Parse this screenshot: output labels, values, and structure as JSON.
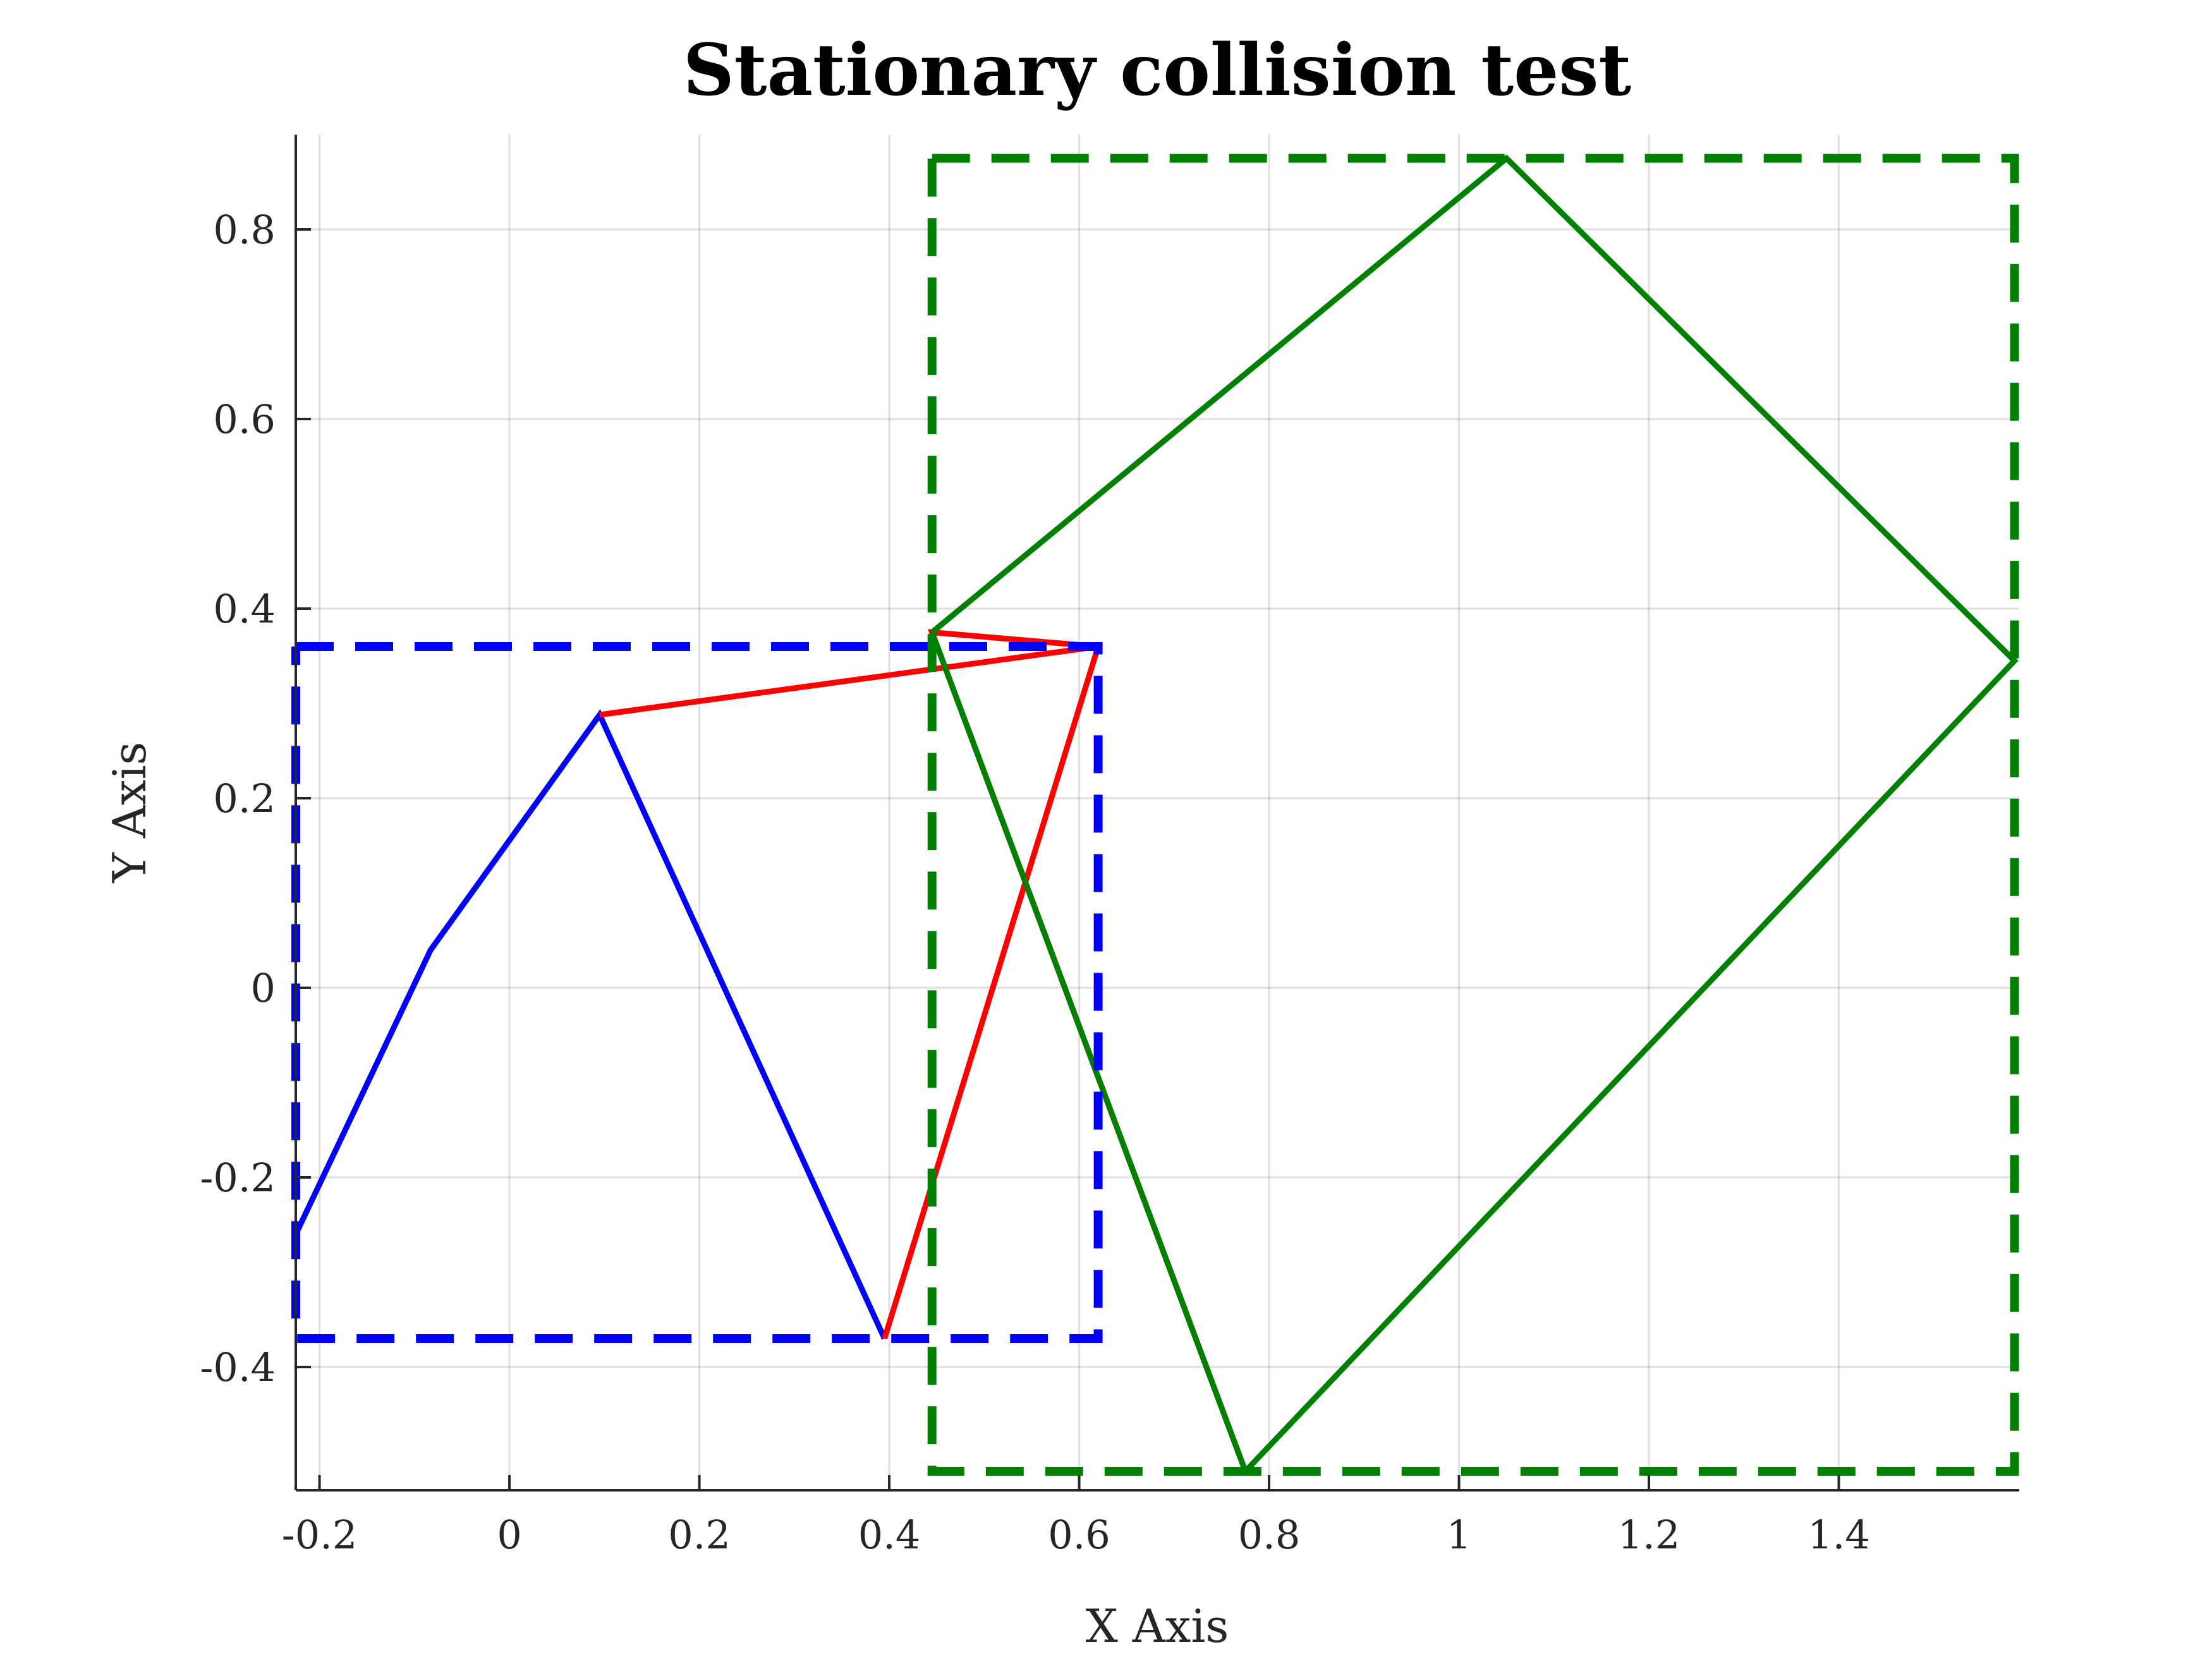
{
  "chart_data": {
    "type": "line",
    "title": "Stationary collision test",
    "xlabel": "X Axis",
    "ylabel": "Y Axis",
    "xlim": [
      -0.225,
      1.59
    ],
    "ylim": [
      -0.53,
      0.9
    ],
    "xticks": [
      -0.2,
      0,
      0.2,
      0.4,
      0.6,
      0.8,
      1,
      1.2,
      1.4
    ],
    "xtick_labels": [
      "-0.2",
      "0",
      "0.2",
      "0.4",
      "0.6",
      "0.8",
      "1",
      "1.2",
      "1.4"
    ],
    "yticks": [
      -0.4,
      -0.2,
      0,
      0.2,
      0.4,
      0.6,
      0.8
    ],
    "ytick_labels": [
      "-0.4",
      "-0.2",
      "0",
      "0.2",
      "0.4",
      "0.6",
      "0.8"
    ],
    "grid": true,
    "series": [
      {
        "style": "solid",
        "color": "#0000ff",
        "x": [
          -0.225,
          -0.083,
          0.095,
          0.395
        ],
        "y": [
          -0.26,
          0.04,
          0.288,
          -0.37
        ]
      },
      {
        "style": "solid",
        "color": "#ff0000",
        "x": [
          0.395,
          0.62,
          0.095,
          0.62,
          0.445,
          0.775
        ],
        "y": [
          -0.37,
          0.36,
          0.288,
          0.36,
          0.375,
          -0.51
        ]
      },
      {
        "style": "solid",
        "color": "#008000",
        "x": [
          0.445,
          1.05,
          1.585,
          0.775,
          0.445
        ],
        "y": [
          0.375,
          0.875,
          0.345,
          -0.51,
          0.375
        ]
      },
      {
        "style": "dashed",
        "color": "#0000ff",
        "x": [
          -0.225,
          0.62,
          0.62,
          -0.225,
          -0.225
        ],
        "y": [
          0.36,
          0.36,
          -0.37,
          -0.37,
          0.36
        ]
      },
      {
        "style": "dashed",
        "color": "#008000",
        "x": [
          0.445,
          1.585,
          1.585,
          0.445,
          0.445
        ],
        "y": [
          0.875,
          0.875,
          -0.51,
          -0.51,
          0.875
        ]
      }
    ]
  }
}
